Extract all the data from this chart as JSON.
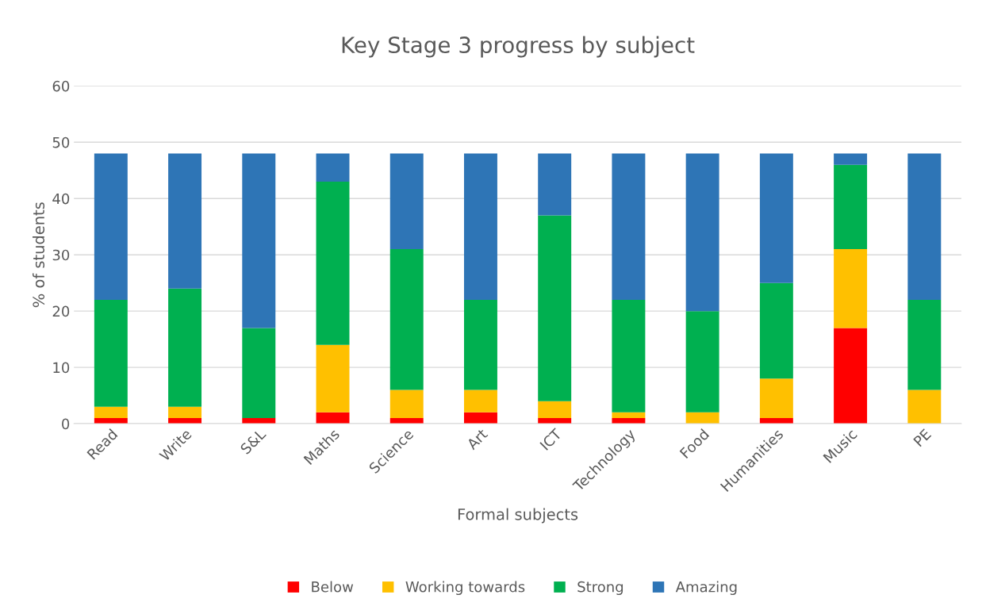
{
  "chart_data": {
    "type": "bar",
    "title": "Key Stage 3 progress by subject",
    "xlabel": "Formal subjects",
    "ylabel": "% of students",
    "categories": [
      "Read",
      "Write",
      "S&L",
      "Maths",
      "Science",
      "Art",
      "ICT",
      "Technology",
      "Food",
      "Humanities",
      "Music",
      "PE"
    ],
    "stacked": true,
    "series": [
      {
        "name": "Below",
        "color": "#ff0000",
        "values": [
          1,
          1,
          1,
          2,
          1,
          2,
          1,
          1,
          0,
          1,
          17,
          0
        ]
      },
      {
        "name": "Working towards",
        "color": "#ffc000",
        "values": [
          2,
          2,
          0,
          12,
          5,
          4,
          3,
          1,
          2,
          7,
          14,
          6
        ]
      },
      {
        "name": "Strong",
        "color": "#00b050",
        "values": [
          19,
          21,
          16,
          29,
          25,
          16,
          33,
          20,
          18,
          17,
          15,
          16
        ]
      },
      {
        "name": "Amazing",
        "color": "#2e75b6",
        "values": [
          26,
          24,
          31,
          5,
          17,
          26,
          11,
          26,
          28,
          23,
          2,
          26
        ]
      }
    ],
    "ylim": [
      0,
      60
    ],
    "yticks": [
      0,
      10,
      20,
      30,
      40,
      50,
      60
    ],
    "grid": "y",
    "legend": "bottom"
  }
}
